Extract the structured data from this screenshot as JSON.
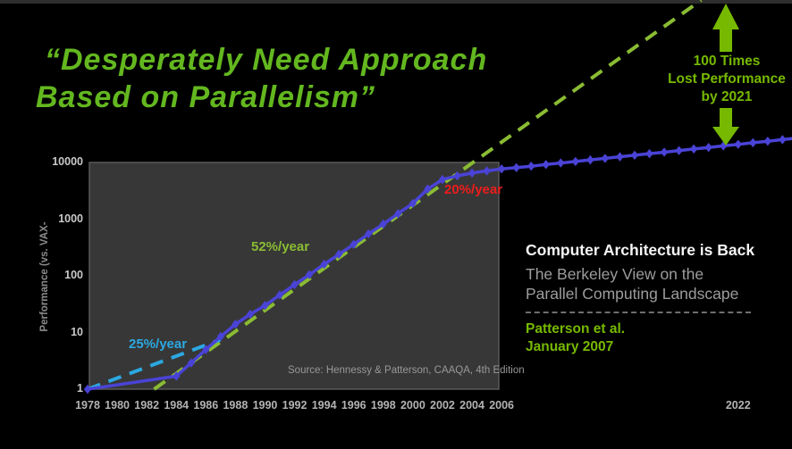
{
  "slide": {
    "background": "#000000",
    "top_bar_color": "#2e2e2e",
    "title": {
      "line1": "“Desperately Need Approach",
      "line2": "Based on Parallelism”",
      "color": "#63b71f"
    },
    "arrow_callout": {
      "line1": "100 Times",
      "line2": "Lost Performance",
      "line3": "by 2021",
      "color": "#76b900"
    },
    "reference": {
      "heading": "Computer Architecture is Back",
      "subtitle_line1": "The Berkeley View on the",
      "subtitle_line2": "Parallel Computing Landscape",
      "credit_line1": "Patterson et al.",
      "credit_line2": "January 2007",
      "heading_color": "#f5f5f5",
      "subtitle_color": "#9c9c9c",
      "credit_color": "#76b900"
    }
  },
  "chart_data": {
    "type": "line",
    "title": "",
    "xlabel": "",
    "ylabel": "Performance (vs. VAX-",
    "y_scale": "log",
    "ylim": [
      1,
      10000
    ],
    "xlim": [
      1978,
      2026
    ],
    "grid": false,
    "plot_background": "#373737",
    "x_ticks": [
      "1978",
      "1980",
      "1982",
      "1984",
      "1986",
      "1988",
      "1990",
      "1992",
      "1994",
      "1996",
      "1998",
      "2000",
      "2002",
      "2004",
      "2006",
      "2022"
    ],
    "y_ticks": [
      "1",
      "10",
      "100",
      "1000",
      "10000"
    ],
    "source_note": "Source: Hennessy & Patterson, CAAQA, 4th Edition",
    "series": [
      {
        "name": "processor-performance",
        "color": "#4a43d6",
        "marker": "diamond",
        "x": [
          1978,
          1984,
          1985,
          1986,
          1987,
          1988,
          1989,
          1990,
          1991,
          1992,
          1993,
          1994,
          1995,
          1996,
          1997,
          1998,
          1999,
          2000,
          2001,
          2002,
          2003,
          2004,
          2005,
          2006,
          2007,
          2008,
          2009,
          2010,
          2011,
          2012,
          2013,
          2014,
          2015,
          2016,
          2017,
          2018,
          2019,
          2020,
          2021,
          2022,
          2023,
          2024,
          2025,
          2026
        ],
        "y": [
          1,
          1.7,
          2.9,
          5,
          8.5,
          14,
          21,
          30,
          46,
          70,
          105,
          160,
          240,
          360,
          550,
          820,
          1250,
          1900,
          3400,
          5000,
          5800,
          6500,
          7100,
          7700,
          8100,
          8600,
          9200,
          9800,
          10400,
          11100,
          11800,
          12600,
          13400,
          14300,
          15200,
          16200,
          17300,
          18400,
          19600,
          20900,
          22300,
          23700,
          25300,
          27000
        ]
      }
    ],
    "trend_lines": [
      {
        "name": "trend-52pct-year",
        "label": "52%/year",
        "color": "#8abc33",
        "style": "dashed",
        "start": {
          "year": 1982.5,
          "value": 1
        },
        "end": {
          "year": 2019.5,
          "value": 7300000
        }
      },
      {
        "name": "trend-25pct-year",
        "label": "25%/year",
        "color": "#2ba8e0",
        "style": "dashed",
        "start": {
          "year": 1978,
          "value": 1
        },
        "end": {
          "year": 1987,
          "value": 7.5
        }
      }
    ],
    "annotations": [
      {
        "text": "25%/year",
        "color": "#2ba8e0"
      },
      {
        "text": "52%/year",
        "color": "#8abc33"
      },
      {
        "text": "20%/year",
        "color": "#ee1c1c"
      }
    ]
  }
}
